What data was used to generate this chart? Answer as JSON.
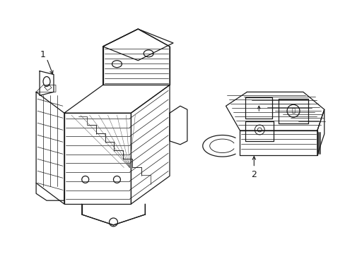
{
  "background_color": "#ffffff",
  "line_color": "#1a1a1a",
  "label_1": "1",
  "label_2": "2",
  "figsize": [
    4.89,
    3.6
  ],
  "dpi": 100,
  "lw_main": 0.9,
  "lw_thin": 0.5,
  "lw_vt": 0.35
}
